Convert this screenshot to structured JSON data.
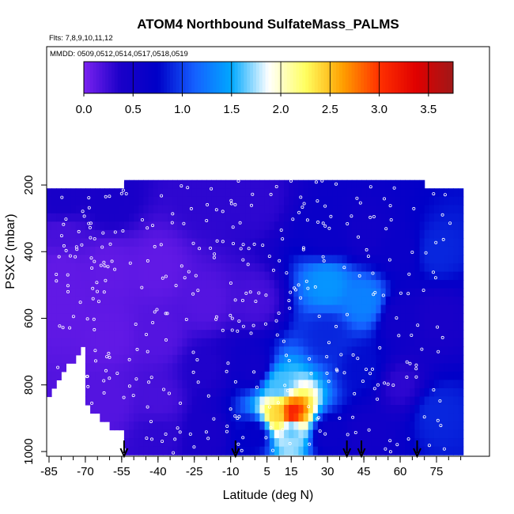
{
  "chart_data": {
    "type": "heatmap",
    "title": "ATOM4 Northbound SulfateMass_PALMS",
    "flights_note": "Flts: 7,8,9,10,11,12",
    "dates_note": "MMDD: 0509,0512,0514,0517,0518,0519",
    "xlabel": "Latitude (deg N)",
    "ylabel": "PSXC (mbar)",
    "xlim": [
      -87,
      87
    ],
    "ylim": [
      1000,
      150
    ],
    "x_ticks": [
      -85,
      -70,
      -55,
      -40,
      -25,
      -10,
      5,
      15,
      30,
      45,
      60,
      75
    ],
    "x_tick_labels": [
      "-85",
      "-70",
      "-55",
      "-40",
      "-25",
      "-10",
      "5",
      "15",
      "30",
      "45",
      "60",
      "75"
    ],
    "y_ticks": [
      200,
      400,
      600,
      800,
      1000
    ],
    "y_tick_labels": [
      "200",
      "400",
      "600",
      "800",
      "1000"
    ],
    "colorbar": {
      "min": 0,
      "max": 3.75,
      "ticks": [
        0.0,
        0.5,
        1.0,
        1.5,
        2.0,
        2.5,
        3.0,
        3.5
      ],
      "tick_labels": [
        "0.0",
        "0.5",
        "1.0",
        "1.5",
        "2.0",
        "2.5",
        "3.0",
        "3.5"
      ],
      "colors": [
        "#7b22f0",
        "#1a00c8",
        "#0000c8",
        "#1560ff",
        "#00a8ff",
        "#ffffff",
        "#ffff60",
        "#ffa000",
        "#ff3000",
        "#e00000",
        "#a01818"
      ]
    },
    "arrow_latitudes": [
      -54,
      -8,
      38,
      44,
      67
    ],
    "cells": [
      {
        "lat": -80,
        "p": 250,
        "v": 0.4
      },
      {
        "lat": -80,
        "p": 350,
        "v": 0.2
      },
      {
        "lat": -80,
        "p": 450,
        "v": 0.1
      },
      {
        "lat": -80,
        "p": 550,
        "v": 0.1
      },
      {
        "lat": -60,
        "p": 250,
        "v": 0.4
      },
      {
        "lat": -60,
        "p": 450,
        "v": 0.1
      },
      {
        "lat": -60,
        "p": 650,
        "v": 0.1
      },
      {
        "lat": -60,
        "p": 850,
        "v": 0.15
      },
      {
        "lat": -40,
        "p": 450,
        "v": 0.1
      },
      {
        "lat": -40,
        "p": 650,
        "v": 0.15
      },
      {
        "lat": -40,
        "p": 850,
        "v": 0.2
      },
      {
        "lat": -40,
        "p": 950,
        "v": 0.3
      },
      {
        "lat": -20,
        "p": 250,
        "v": 0.3
      },
      {
        "lat": -20,
        "p": 550,
        "v": 0.15
      },
      {
        "lat": -20,
        "p": 750,
        "v": 0.35
      },
      {
        "lat": -20,
        "p": 950,
        "v": 0.4
      },
      {
        "lat": 0,
        "p": 250,
        "v": 0.3
      },
      {
        "lat": 0,
        "p": 550,
        "v": 0.2
      },
      {
        "lat": 0,
        "p": 750,
        "v": 0.5
      },
      {
        "lat": 0,
        "p": 950,
        "v": 0.7
      },
      {
        "lat": 10,
        "p": 800,
        "v": 1.6
      },
      {
        "lat": 10,
        "p": 890,
        "v": 2.4
      },
      {
        "lat": 15,
        "p": 890,
        "v": 3.2
      },
      {
        "lat": 15,
        "p": 930,
        "v": 1.6
      },
      {
        "lat": 30,
        "p": 500,
        "v": 1.4
      },
      {
        "lat": 30,
        "p": 350,
        "v": 0.6
      },
      {
        "lat": 30,
        "p": 650,
        "v": 0.9
      },
      {
        "lat": 30,
        "p": 950,
        "v": 0.6
      },
      {
        "lat": 45,
        "p": 550,
        "v": 1.3
      },
      {
        "lat": 45,
        "p": 350,
        "v": 0.5
      },
      {
        "lat": 45,
        "p": 750,
        "v": 0.8
      },
      {
        "lat": 45,
        "p": 950,
        "v": 0.5
      },
      {
        "lat": 60,
        "p": 400,
        "v": 0.6
      },
      {
        "lat": 60,
        "p": 600,
        "v": 0.5
      },
      {
        "lat": 60,
        "p": 800,
        "v": 0.3
      },
      {
        "lat": 75,
        "p": 400,
        "v": 0.9
      },
      {
        "lat": 75,
        "p": 600,
        "v": 0.4
      },
      {
        "lat": 75,
        "p": 880,
        "v": 0.9
      }
    ],
    "legend": "none",
    "grid": false
  }
}
